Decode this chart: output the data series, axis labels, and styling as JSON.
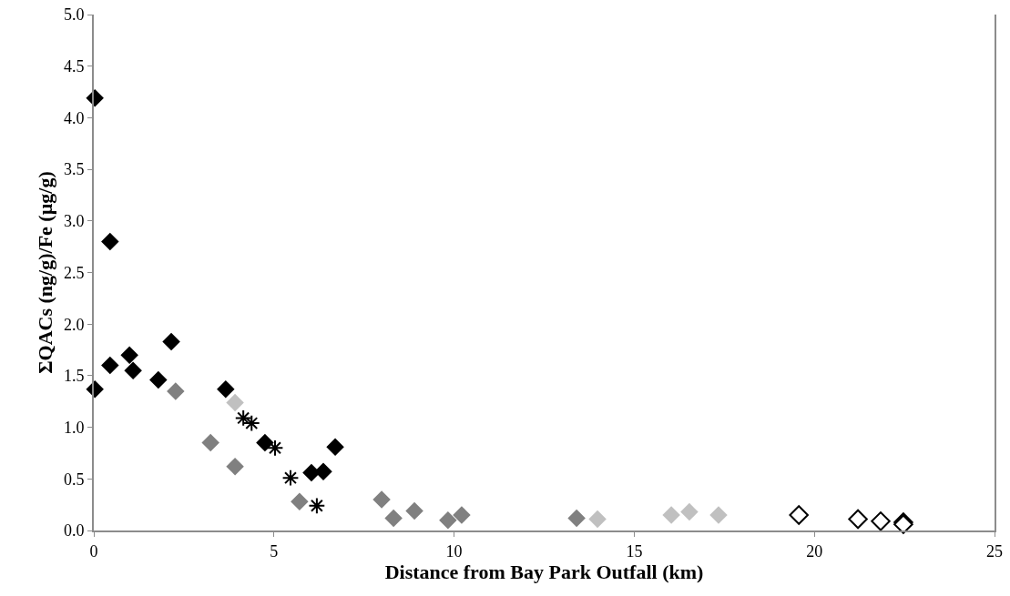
{
  "chart_data": {
    "type": "scatter",
    "xlabel": "Distance from Bay Park Outfall (km)",
    "ylabel": "ΣQACs (ng/g)/Fe (µg/g)",
    "xlim": [
      0,
      25
    ],
    "xticks": [
      0,
      5,
      10,
      15,
      20,
      25
    ],
    "ylim": [
      0,
      5
    ],
    "yticks": [
      {
        "value": 0,
        "label": "0.0"
      },
      {
        "value": 0.5,
        "label": "0.5"
      },
      {
        "value": 1,
        "label": "1.0"
      },
      {
        "value": 1.5,
        "label": "1.5"
      },
      {
        "value": 2,
        "label": "2.0"
      },
      {
        "value": 2.5,
        "label": "2.5"
      },
      {
        "value": 3,
        "label": "3.0"
      },
      {
        "value": 3.5,
        "label": "3.5"
      },
      {
        "value": 4,
        "label": "4.0"
      },
      {
        "value": 4.5,
        "label": "4.5"
      },
      {
        "value": 5,
        "label": "5.0"
      }
    ],
    "marker": "diamond",
    "series": [
      {
        "color": "#000000",
        "x": [
          0.03,
          0.45,
          0.03,
          0.45,
          0.99,
          1.09,
          1.79,
          2.15,
          3.66,
          4.75,
          6.04,
          6.37,
          6.7
        ],
        "values": [
          4.19,
          2.8,
          1.37,
          1.6,
          1.7,
          1.55,
          1.46,
          1.83,
          1.37,
          0.85,
          0.56,
          0.57,
          0.81
        ]
      },
      {
        "color": "#808080",
        "x": [
          2.27,
          3.24,
          3.92,
          5.71,
          7.99,
          8.32,
          8.9,
          9.83,
          10.21,
          13.4
        ],
        "values": [
          1.35,
          0.85,
          0.62,
          0.28,
          0.3,
          0.12,
          0.19,
          0.1,
          0.15,
          0.12
        ]
      },
      {
        "color": "#c0c0c0",
        "x": [
          3.92,
          13.98,
          16.03,
          16.53,
          17.34
        ],
        "values": [
          1.24,
          0.11,
          0.15,
          0.18,
          0.15
        ]
      },
      {
        "color": "#000000",
        "marker": "cross",
        "x": [
          4.15,
          4.38,
          5.03,
          5.46,
          6.19
        ],
        "values": [
          1.09,
          1.04,
          0.8,
          0.51,
          0.24
        ]
      },
      {
        "color": "#ffffff",
        "x": [
          19.57,
          21.21,
          21.84,
          22.47,
          22.47
        ],
        "values": [
          0.15,
          0.11,
          0.09,
          0.08,
          0.06
        ]
      }
    ]
  }
}
